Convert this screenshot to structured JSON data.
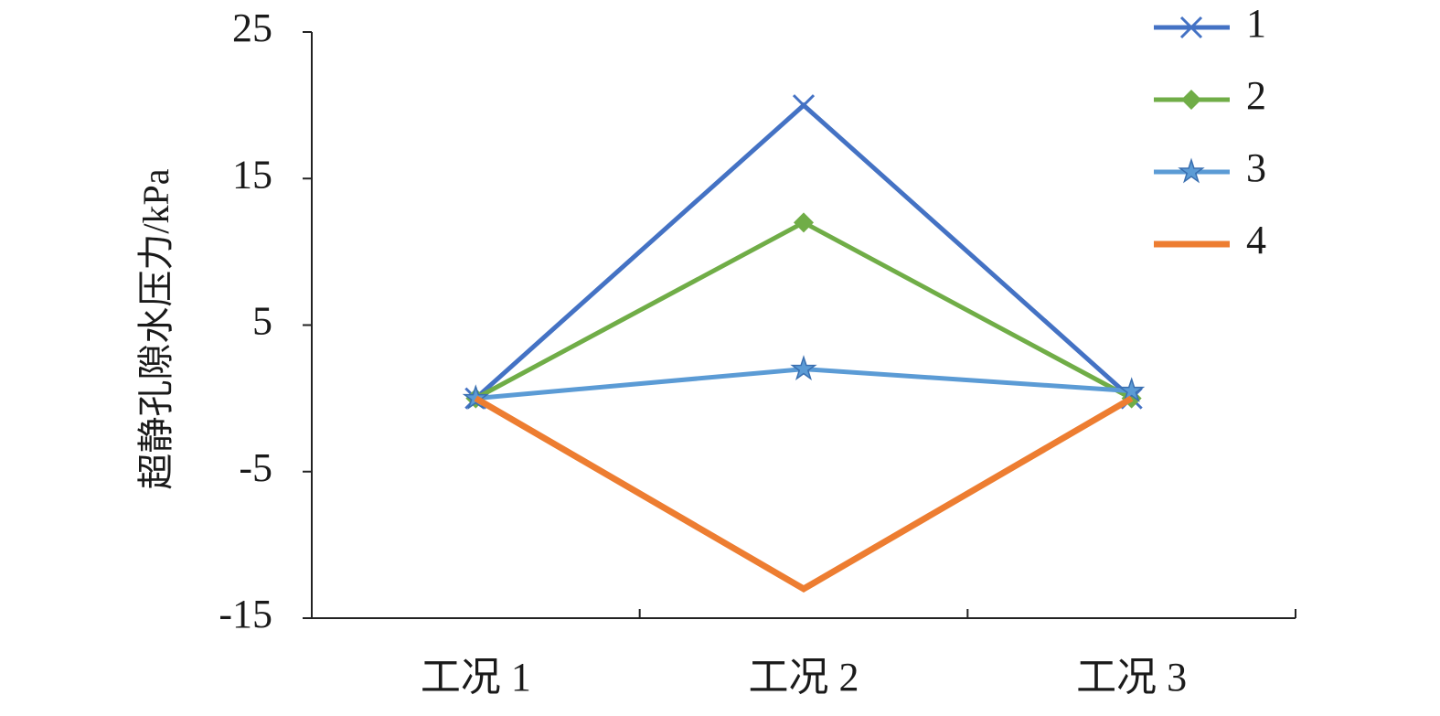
{
  "chart_data": {
    "type": "line",
    "y_label": "超静孔隙水压力/kPa",
    "categories": [
      "工况 1",
      "工况 2",
      "工况 3"
    ],
    "series": [
      {
        "name": "1",
        "color": "#4472c4",
        "marker": "x",
        "values": [
          0,
          20,
          0
        ]
      },
      {
        "name": "2",
        "color": "#70ad47",
        "marker": "diamond",
        "values": [
          0,
          12,
          0
        ]
      },
      {
        "name": "3",
        "color": "#5b9bd5",
        "marker": "star",
        "values": [
          0,
          2,
          0.5
        ]
      },
      {
        "name": "4",
        "color": "#ed7d31",
        "marker": "none",
        "values": [
          0,
          -13,
          0
        ]
      }
    ],
    "ylim": [
      -15,
      25
    ],
    "yticks": [
      -15,
      -5,
      5,
      15,
      25
    ],
    "grid": false,
    "legend": "top-right"
  }
}
